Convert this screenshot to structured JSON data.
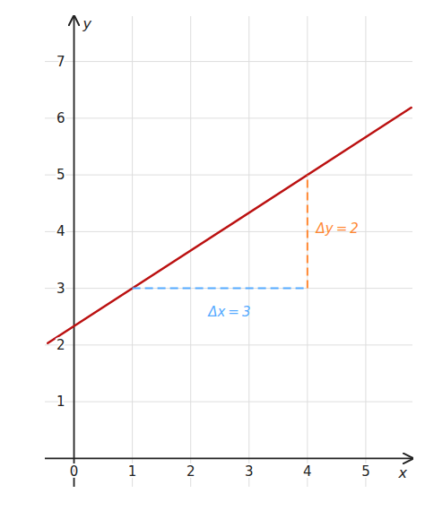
{
  "chart_data": {
    "type": "line",
    "xlim": [
      -0.5,
      5.8
    ],
    "ylim": [
      -0.5,
      7.8
    ],
    "xticks": [
      0,
      1,
      2,
      3,
      4,
      5
    ],
    "yticks": [
      0,
      1,
      2,
      3,
      4,
      5,
      6,
      7
    ],
    "grid": true,
    "x_label": "x",
    "y_label": "y",
    "series": [
      {
        "x": [
          -0.45,
          5.78
        ],
        "values": [
          2.032985,
          6.186526
        ],
        "color": "#bb1111",
        "line_style": "solid"
      },
      {
        "x": [
          1.0,
          4.0
        ],
        "values": [
          3.0,
          3.0
        ],
        "color": "#55aaff",
        "line_style": "dashed"
      },
      {
        "x": [
          4.0,
          4.0
        ],
        "values": [
          3.0,
          5.0
        ],
        "color": "#ff8833",
        "line_style": "dashed"
      }
    ],
    "annotations": [
      {
        "text": "Δx = 3",
        "x": 2.3,
        "y": 2.68,
        "color": "#55aaff"
      },
      {
        "text": "Δy = 2",
        "x": 4.15,
        "y": 4.05,
        "color": "#ff8833"
      }
    ]
  }
}
